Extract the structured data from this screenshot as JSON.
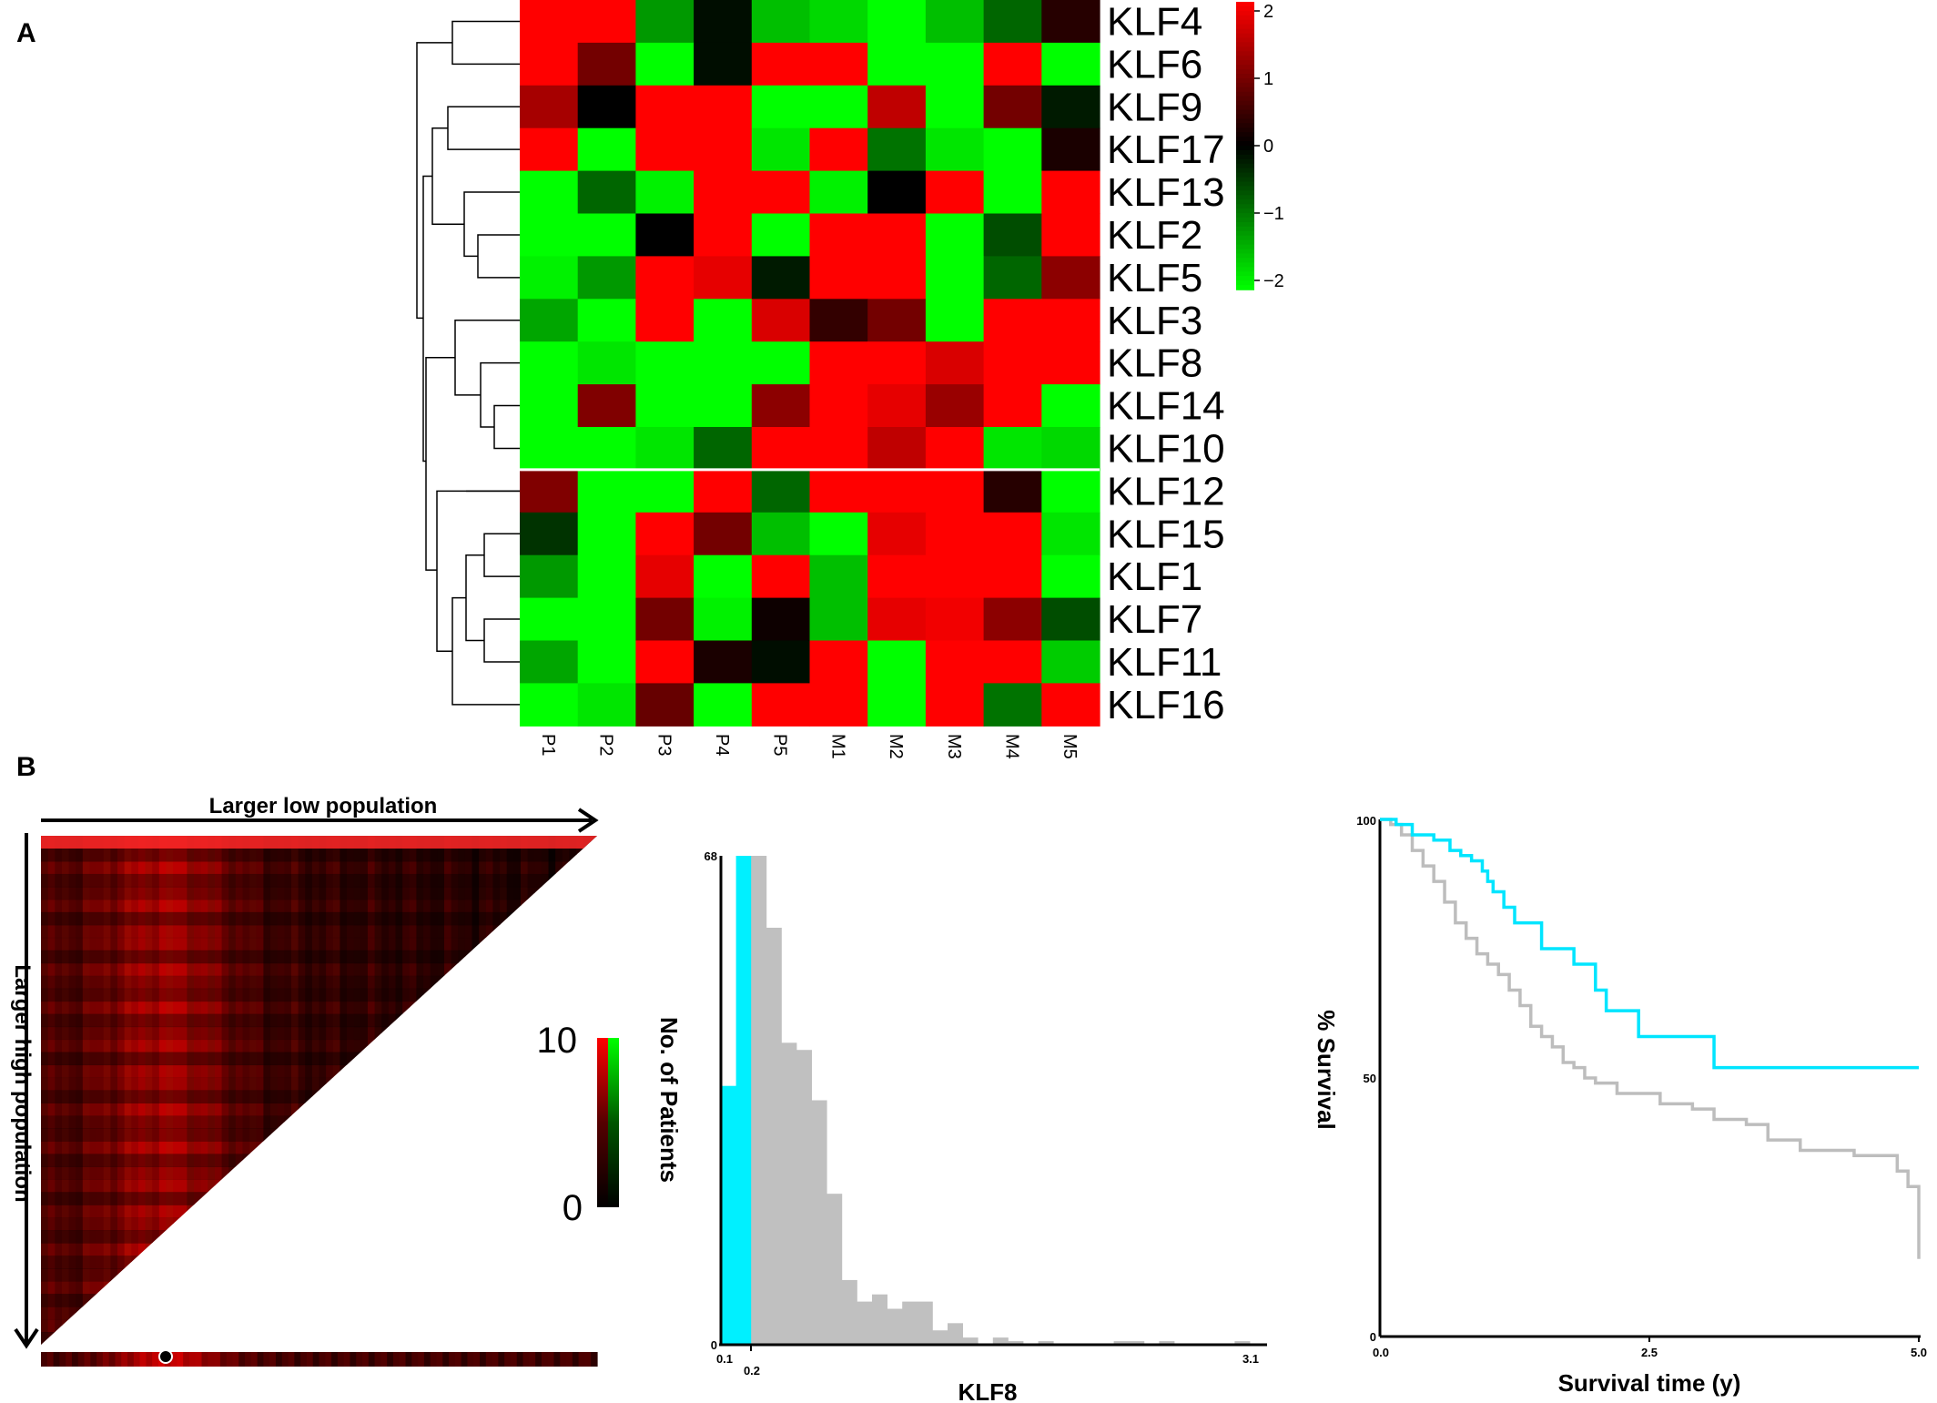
{
  "panels": {
    "a": "A",
    "b": "B"
  },
  "chart_data": [
    {
      "type": "heatmap",
      "samples": [
        "P1",
        "P2",
        "P3",
        "P4",
        "P5",
        "M1",
        "M2",
        "M3",
        "M4",
        "M5"
      ],
      "genes": [
        "KLF4",
        "KLF6",
        "KLF9",
        "KLF17",
        "KLF13",
        "KLF2",
        "KLF5",
        "KLF3",
        "KLF8",
        "KLF14",
        "KLF10",
        "KLF12",
        "KLF15",
        "KLF1",
        "KLF7",
        "KLF11",
        "KLF16"
      ],
      "values": [
        [
          2,
          2,
          -1.2,
          -0.1,
          -1.5,
          -1.7,
          -2,
          -1.5,
          -0.8,
          0.3
        ],
        [
          2,
          0.9,
          -2,
          -0.1,
          2,
          2,
          -2,
          -2,
          2,
          -2
        ],
        [
          1.3,
          0,
          2,
          2,
          -2,
          -2,
          1.5,
          -2,
          0.9,
          -0.2
        ],
        [
          2,
          -2,
          2,
          2,
          -1.8,
          2,
          -0.9,
          -1.8,
          -2,
          0.2
        ],
        [
          -2,
          -0.8,
          -1.9,
          2,
          2,
          -1.9,
          0,
          2,
          -2,
          2
        ],
        [
          -2,
          -2,
          0,
          2,
          -2,
          2,
          2,
          -2,
          -0.6,
          2
        ],
        [
          -1.9,
          -1.2,
          2,
          1.8,
          -0.2,
          2,
          2,
          -2,
          -0.8,
          1.1
        ],
        [
          -1.3,
          -2,
          2,
          -2,
          1.7,
          0.4,
          0.9,
          -2,
          2,
          2
        ],
        [
          -2,
          -1.8,
          -2,
          -2,
          -2,
          2,
          2,
          1.7,
          2,
          2
        ],
        [
          -2,
          1,
          -2,
          -2,
          1.1,
          2,
          1.8,
          1.2,
          2,
          -2
        ],
        [
          -2,
          -2,
          -1.8,
          -0.8,
          2,
          2,
          1.5,
          2,
          -1.8,
          -1.7
        ],
        [
          1,
          -2,
          -2,
          2,
          -0.8,
          2,
          2,
          2,
          0.3,
          -2
        ],
        [
          -0.4,
          -2,
          2,
          0.9,
          -1.5,
          -2,
          1.8,
          2,
          2,
          -1.8
        ],
        [
          -1.2,
          -2,
          1.8,
          -2,
          2,
          -1.5,
          2,
          2,
          2,
          -2
        ],
        [
          -2,
          -2,
          0.9,
          -1.9,
          0.1,
          -1.5,
          1.8,
          1.9,
          1.1,
          -0.6
        ],
        [
          -1.3,
          -2,
          2,
          0.2,
          -0.1,
          2,
          -2,
          2,
          2,
          -1.6
        ],
        [
          -2,
          -1.8,
          0.8,
          -2,
          2,
          2,
          -2,
          2,
          -0.9,
          2
        ]
      ],
      "colorbar": {
        "ticks": [
          "2",
          "1",
          "0",
          "−1",
          "−2"
        ],
        "range": [
          -2,
          2
        ]
      },
      "colors": {
        "low": "#00ff00",
        "mid": "#000000",
        "high": "#ff0000"
      }
    },
    {
      "type": "heatmap",
      "top_label": "Larger low population",
      "left_label": "Larger high population",
      "colorbar": {
        "max_label": "10",
        "min_label": "0",
        "range": [
          0,
          10
        ]
      }
    },
    {
      "type": "bar",
      "ylabel": "No. of Patients",
      "xlabel": "KLF8",
      "ylim": [
        0,
        68
      ],
      "y_ticks": [
        "68",
        "0"
      ],
      "x_ticks": [
        "0.1",
        "0.2",
        "3.1"
      ],
      "bins": [
        {
          "x": 0.1,
          "value": 36,
          "group": "low"
        },
        {
          "x": 0.15,
          "value": 68,
          "group": "low"
        },
        {
          "x": 0.2,
          "value": 68,
          "group": "high"
        },
        {
          "x": 0.25,
          "value": 58,
          "group": "high"
        },
        {
          "x": 0.3,
          "value": 42,
          "group": "high"
        },
        {
          "x": 0.35,
          "value": 41,
          "group": "high"
        },
        {
          "x": 0.4,
          "value": 34,
          "group": "high"
        },
        {
          "x": 0.45,
          "value": 21,
          "group": "high"
        },
        {
          "x": 0.5,
          "value": 9,
          "group": "high"
        },
        {
          "x": 0.55,
          "value": 6,
          "group": "high"
        },
        {
          "x": 0.6,
          "value": 7,
          "group": "high"
        },
        {
          "x": 0.65,
          "value": 5,
          "group": "high"
        },
        {
          "x": 0.7,
          "value": 6,
          "group": "high"
        },
        {
          "x": 0.75,
          "value": 6,
          "group": "high"
        },
        {
          "x": 0.8,
          "value": 2,
          "group": "high"
        },
        {
          "x": 0.85,
          "value": 3,
          "group": "high"
        },
        {
          "x": 0.9,
          "value": 1,
          "group": "high"
        },
        {
          "x": 0.95,
          "value": 0,
          "group": "high"
        },
        {
          "x": 1.0,
          "value": 1,
          "group": "high"
        },
        {
          "x": 1.05,
          "value": 0.5,
          "group": "high"
        },
        {
          "x": 1.1,
          "value": 0,
          "group": "high"
        },
        {
          "x": 1.15,
          "value": 0.5,
          "group": "high"
        },
        {
          "x": 1.2,
          "value": 0,
          "group": "high"
        },
        {
          "x": 1.25,
          "value": 0,
          "group": "high"
        },
        {
          "x": 1.3,
          "value": 0,
          "group": "high"
        },
        {
          "x": 1.35,
          "value": 0,
          "group": "high"
        },
        {
          "x": 1.4,
          "value": 0.5,
          "group": "high"
        },
        {
          "x": 1.45,
          "value": 0.5,
          "group": "high"
        },
        {
          "x": 1.5,
          "value": 0,
          "group": "high"
        },
        {
          "x": 1.55,
          "value": 0.5,
          "group": "high"
        },
        {
          "x": 1.6,
          "value": 0,
          "group": "high"
        },
        {
          "x": 1.65,
          "value": 0,
          "group": "high"
        },
        {
          "x": 1.7,
          "value": 0,
          "group": "high"
        },
        {
          "x": 1.75,
          "value": 0,
          "group": "high"
        },
        {
          "x": 1.8,
          "value": 0.5,
          "group": "high"
        }
      ],
      "colors": {
        "low": "#00f0ff",
        "high": "#c0c0c0"
      }
    },
    {
      "type": "line",
      "ylabel": "% Survival",
      "xlabel": "Survival time (y)",
      "xlim": [
        0,
        5
      ],
      "ylim": [
        0,
        100
      ],
      "x_ticks": [
        "0.0",
        "2.5",
        "5.0"
      ],
      "y_ticks": [
        "100",
        "50",
        "0"
      ],
      "series": [
        {
          "color": "#00e5ff",
          "points": [
            [
              0,
              100
            ],
            [
              0.15,
              99
            ],
            [
              0.3,
              97
            ],
            [
              0.5,
              96
            ],
            [
              0.65,
              94
            ],
            [
              0.75,
              93
            ],
            [
              0.85,
              92
            ],
            [
              0.95,
              90
            ],
            [
              1.0,
              88
            ],
            [
              1.05,
              86
            ],
            [
              1.15,
              83
            ],
            [
              1.25,
              80
            ],
            [
              1.5,
              75
            ],
            [
              1.8,
              72
            ],
            [
              2.0,
              67
            ],
            [
              2.1,
              63
            ],
            [
              2.4,
              58
            ],
            [
              2.6,
              58
            ],
            [
              3.1,
              52
            ],
            [
              5.0,
              52
            ]
          ]
        },
        {
          "color": "#bdbdbd",
          "points": [
            [
              0,
              100
            ],
            [
              0.1,
              99
            ],
            [
              0.2,
              97
            ],
            [
              0.3,
              94
            ],
            [
              0.4,
              91
            ],
            [
              0.5,
              88
            ],
            [
              0.6,
              84
            ],
            [
              0.7,
              80
            ],
            [
              0.8,
              77
            ],
            [
              0.9,
              74
            ],
            [
              1.0,
              72
            ],
            [
              1.1,
              70
            ],
            [
              1.2,
              67
            ],
            [
              1.3,
              64
            ],
            [
              1.4,
              60
            ],
            [
              1.5,
              58
            ],
            [
              1.6,
              56
            ],
            [
              1.7,
              53
            ],
            [
              1.8,
              52
            ],
            [
              1.9,
              50
            ],
            [
              2.0,
              49
            ],
            [
              2.2,
              47
            ],
            [
              2.6,
              45
            ],
            [
              2.9,
              44
            ],
            [
              3.1,
              42
            ],
            [
              3.4,
              41
            ],
            [
              3.6,
              38
            ],
            [
              3.9,
              36
            ],
            [
              4.4,
              35
            ],
            [
              4.8,
              32
            ],
            [
              4.9,
              29
            ],
            [
              5.0,
              15
            ]
          ]
        }
      ]
    }
  ]
}
